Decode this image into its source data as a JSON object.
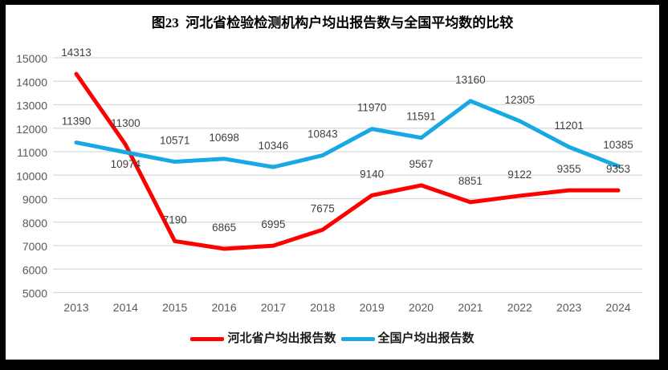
{
  "title": "图23  河北省检验检测机构户均出报告数与全国平均数的比较",
  "chart_data": {
    "type": "line",
    "title": "图23  河北省检验检测机构户均出报告数与全国平均数的比较",
    "categories": [
      "2013",
      "2014",
      "2015",
      "2016",
      "2017",
      "2018",
      "2019",
      "2020",
      "2021",
      "2022",
      "2023",
      "2024"
    ],
    "series": [
      {
        "name": "河北省户均出报告数",
        "color": "#FF0000",
        "values": [
          14313,
          11300,
          7190,
          6865,
          6995,
          7675,
          9140,
          9567,
          8851,
          9122,
          9355,
          9353
        ],
        "labels_below": []
      },
      {
        "name": "全国户均出报告数",
        "color": "#18A8E4",
        "values": [
          11390,
          10974,
          10571,
          10698,
          10346,
          10843,
          11970,
          11591,
          13160,
          12305,
          11201,
          10385
        ],
        "labels_below": [
          1
        ]
      }
    ],
    "ylim": [
      5000,
      15000
    ],
    "yticks": [
      5000,
      6000,
      7000,
      8000,
      9000,
      10000,
      11000,
      12000,
      13000,
      14000,
      15000
    ],
    "grid": true,
    "data_labels": true,
    "legend_position": "bottom",
    "xlabel": "",
    "ylabel": "",
    "colors": {
      "gridline": "#D9D9D9",
      "axis_text": "#595959",
      "data_label_text": "#404040",
      "frame_border": "#000000"
    }
  }
}
